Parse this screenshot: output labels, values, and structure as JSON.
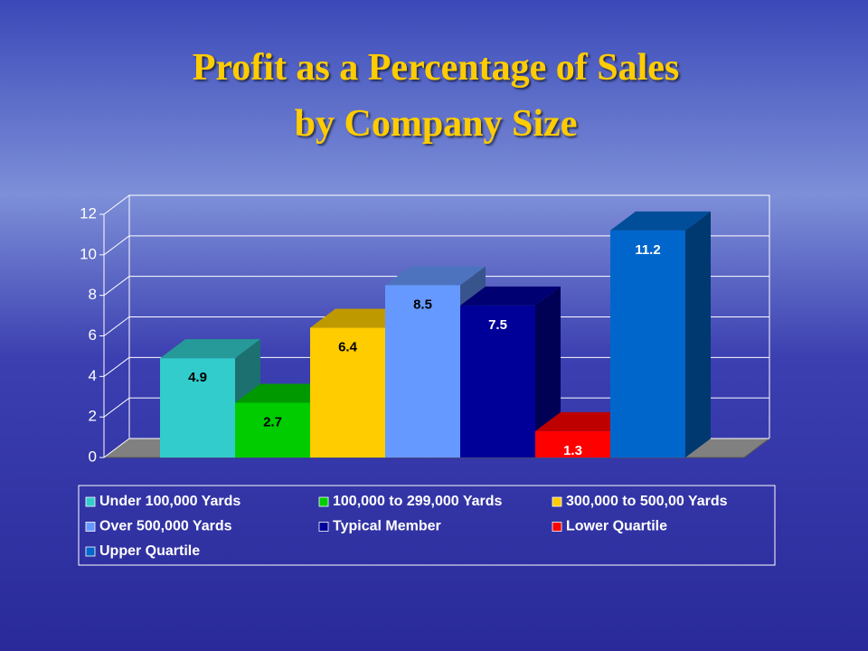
{
  "chart_data": {
    "type": "bar3d",
    "title": [
      "Profit as a Percentage of Sales",
      "by Company Size"
    ],
    "ylim": [
      0,
      12
    ],
    "yticks": [
      0,
      2,
      4,
      6,
      8,
      10,
      12
    ],
    "grid": true,
    "series": [
      {
        "name": "Under 100,000 Yards",
        "color": "#33cccc",
        "values": [
          4.9
        ]
      },
      {
        "name": "100,000 to 299,000 Yards",
        "color": "#00cc00",
        "values": [
          2.7
        ]
      },
      {
        "name": "300,000 to 500,00 Yards",
        "color": "#ffcc00",
        "values": [
          6.4
        ]
      },
      {
        "name": "Over 500,000 Yards",
        "color": "#6699ff",
        "values": [
          8.5
        ]
      },
      {
        "name": "Typical Member",
        "color": "#000099",
        "values": [
          7.5
        ]
      },
      {
        "name": "Lower Quartile",
        "color": "#ff0000",
        "values": [
          1.3
        ]
      },
      {
        "name": "Upper Quartile",
        "color": "#0066cc",
        "values": [
          11.2
        ]
      }
    ]
  }
}
